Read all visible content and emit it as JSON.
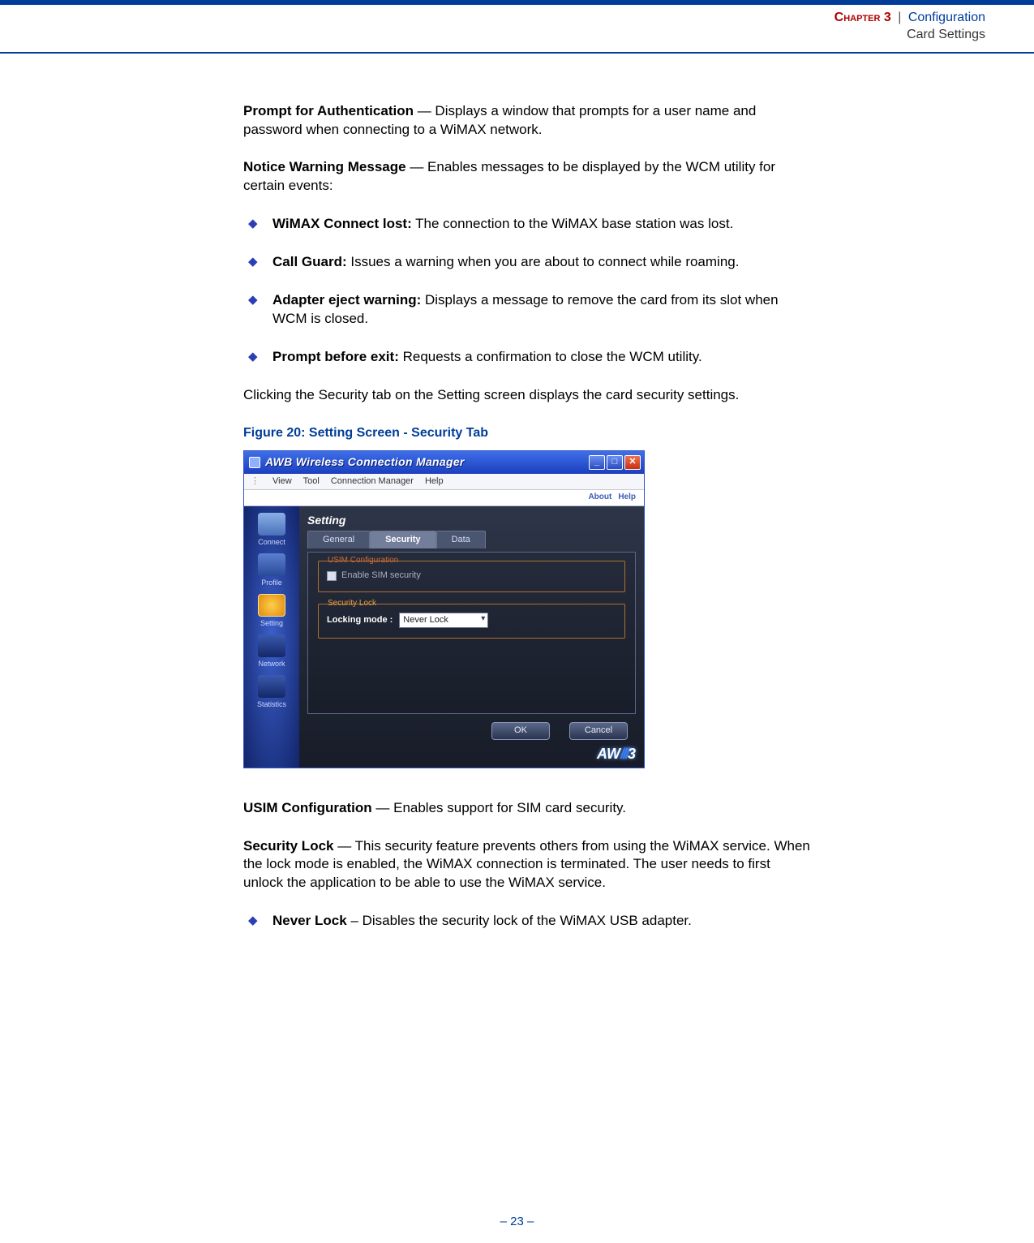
{
  "header": {
    "chapter_label": "Chapter 3",
    "separator": "|",
    "chapter_title": "Configuration",
    "subtitle": "Card Settings"
  },
  "paras": {
    "p1_bold": "Prompt for Authentication",
    "p1_rest": " — Displays a window that prompts for a user name and password when connecting to a WiMAX network.",
    "p2_bold": "Notice Warning Message",
    "p2_rest": " — Enables messages to be displayed by the WCM utility for certain events:",
    "p3": "Clicking the Security tab on the Setting screen displays the card security settings.",
    "p4_bold": "USIM Configuration",
    "p4_rest": " — Enables support for SIM card security.",
    "p5_bold": "Security Lock",
    "p5_rest": " — This security feature prevents others from using the WiMAX service. When the lock mode is enabled, the WiMAX connection is terminated. The user needs to first unlock the application to be able to use the WiMAX service."
  },
  "bullets1": [
    {
      "bold": "WiMAX Connect lost:",
      "rest": " The connection to the WiMAX base station was lost."
    },
    {
      "bold": "Call Guard:",
      "rest": " Issues a warning when you are about to connect while roaming."
    },
    {
      "bold": "Adapter eject warning:",
      "rest": " Displays a message to remove the card from its slot when WCM is closed."
    },
    {
      "bold": "Prompt before exit:",
      "rest": " Requests a confirmation to close the WCM utility."
    }
  ],
  "bullets2": [
    {
      "bold": "Never Lock",
      "rest": " – Disables the security lock of the WiMAX USB adapter."
    }
  ],
  "figure": {
    "caption": "Figure 20:  Setting Screen - Security Tab"
  },
  "screenshot": {
    "title": "AWB Wireless Connection Manager",
    "menubar": [
      "⋮",
      "View",
      "Tool",
      "Connection Manager",
      "Help"
    ],
    "upperlinks": [
      "About",
      "Help"
    ],
    "sidebar": [
      {
        "label": "Connect",
        "icon": "si-connect"
      },
      {
        "label": "Profile",
        "icon": "si-profile"
      },
      {
        "label": "Setting",
        "icon": "si-setting"
      },
      {
        "label": "Network",
        "icon": "si-network"
      },
      {
        "label": "Statistics",
        "icon": "si-stats"
      }
    ],
    "panel_title": "Setting",
    "tabs": [
      {
        "label": "General",
        "active": false
      },
      {
        "label": "Security",
        "active": true
      },
      {
        "label": "Data",
        "active": false
      }
    ],
    "usim_legend": "USIM Configuration",
    "usim_checkbox_label": "Enable SIM security",
    "slock_legend": "Security Lock",
    "lock_label": "Locking mode :",
    "lock_value": "Never Lock",
    "buttons": {
      "ok": "OK",
      "cancel": "Cancel"
    },
    "brand_a": "A",
    "brand_w": "W",
    "brand_stripes": "///",
    "brand_b": "3"
  },
  "footer": {
    "page": "–  23  –"
  },
  "colors": {
    "brand_blue": "#003d99",
    "brand_red": "#b00000",
    "bullet_diamond": "#2a3fb5"
  }
}
